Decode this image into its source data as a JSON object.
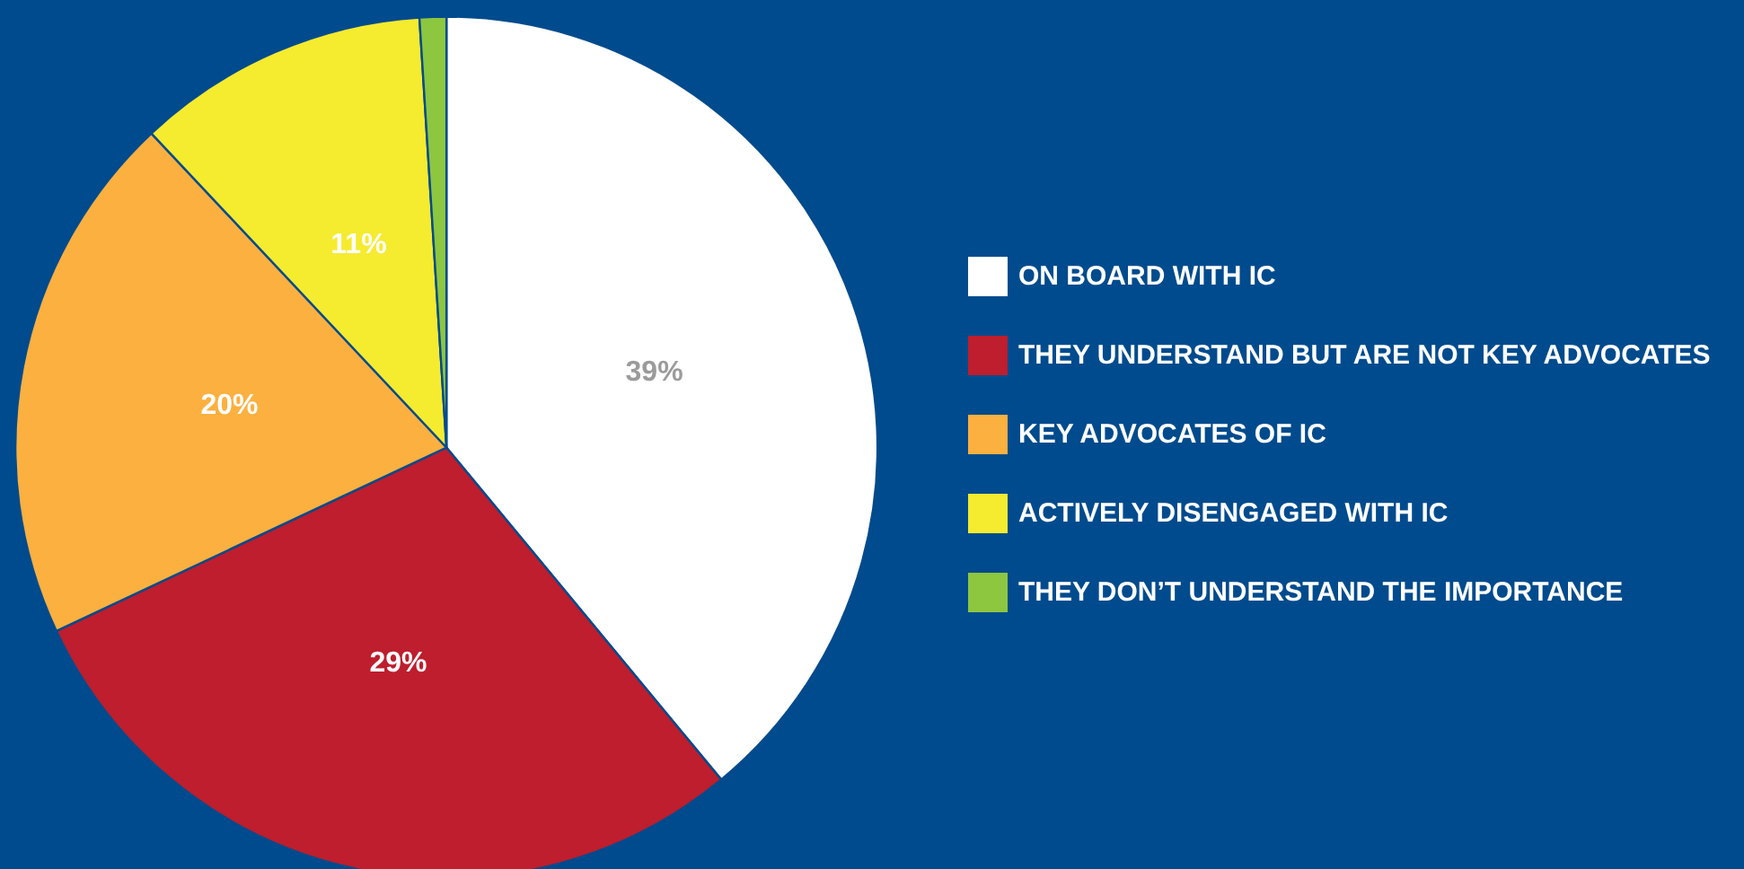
{
  "chart_data": {
    "type": "pie",
    "categories": [
      "ON BOARD WITH IC",
      "THEY UNDERSTAND BUT ARE NOT KEY ADVOCATES",
      "KEY ADVOCATES OF IC",
      "ACTIVELY DISENGAGED WITH IC",
      "THEY DON’T UNDERSTAND THE IMPORTANCE"
    ],
    "values": [
      39,
      29,
      20,
      11,
      1
    ],
    "colors": [
      "#ffffff",
      "#be1e2d",
      "#fbb040",
      "#f5eb2f",
      "#8dc63f"
    ],
    "value_labels": [
      "39%",
      "29%",
      "20%",
      "11%",
      null
    ],
    "legend": "right"
  }
}
